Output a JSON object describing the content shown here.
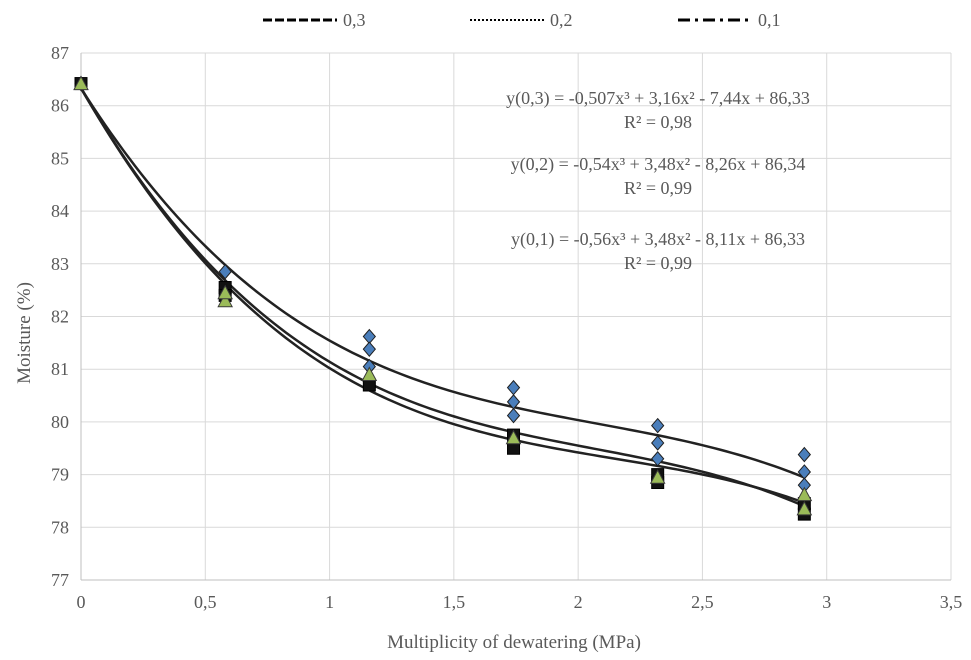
{
  "chart_data": {
    "type": "scatter",
    "xlabel": "Multiplicity of dewatering (MPa)",
    "ylabel": "Moisture (%)",
    "xlim": [
      0,
      3.5
    ],
    "ylim": [
      77,
      87
    ],
    "x_ticks": [
      "0",
      "0,5",
      "1",
      "1,5",
      "2",
      "2,5",
      "3",
      "3,5"
    ],
    "y_ticks": [
      "77",
      "78",
      "79",
      "80",
      "81",
      "82",
      "83",
      "84",
      "85",
      "86",
      "87"
    ],
    "grid": true,
    "legend_position": "top",
    "legend": [
      {
        "label": "0,3",
        "style": "dashed"
      },
      {
        "label": "0,2",
        "style": "dotted"
      },
      {
        "label": "0,1",
        "style": "dash-dot"
      }
    ],
    "series": [
      {
        "name": "0,3",
        "marker": "diamond",
        "color": "#4a7ebb",
        "points": [
          [
            0,
            86.42
          ],
          [
            0.58,
            82.85
          ],
          [
            1.16,
            81.62
          ],
          [
            1.16,
            81.38
          ],
          [
            1.16,
            81.05
          ],
          [
            1.74,
            80.65
          ],
          [
            1.74,
            80.38
          ],
          [
            1.74,
            80.12
          ],
          [
            2.32,
            79.93
          ],
          [
            2.32,
            79.6
          ],
          [
            2.32,
            79.3
          ],
          [
            2.91,
            79.38
          ],
          [
            2.91,
            79.05
          ],
          [
            2.91,
            78.8
          ]
        ]
      },
      {
        "name": "0,2",
        "marker": "square",
        "color": "#111111",
        "points": [
          [
            0,
            86.42
          ],
          [
            0.58,
            82.55
          ],
          [
            0.58,
            82.4
          ],
          [
            1.16,
            80.7
          ],
          [
            1.74,
            79.5
          ],
          [
            1.74,
            79.75
          ],
          [
            2.32,
            78.85
          ],
          [
            2.32,
            79.0
          ],
          [
            2.91,
            78.25
          ],
          [
            2.91,
            78.45
          ]
        ]
      },
      {
        "name": "0,1",
        "marker": "triangle",
        "color": "#9bbb59",
        "points": [
          [
            0,
            86.42
          ],
          [
            0.58,
            82.3
          ],
          [
            0.58,
            82.45
          ],
          [
            1.16,
            80.9
          ],
          [
            1.74,
            79.7
          ],
          [
            2.32,
            78.95
          ],
          [
            2.91,
            78.35
          ],
          [
            2.91,
            78.62
          ]
        ]
      }
    ],
    "trendlines": [
      {
        "series": "0,3",
        "coeffs": [
          -0.507,
          3.16,
          -7.44,
          86.33
        ],
        "equation": "y(0,3) = -0,507x³ + 3,16x² - 7,44x + 86,33",
        "r2": "R² = 0,98"
      },
      {
        "series": "0,2",
        "coeffs": [
          -0.54,
          3.48,
          -8.26,
          86.34
        ],
        "equation": "y(0,2) = -0,54x³ + 3,48x² - 8,26x + 86,34",
        "r2": "R² = 0,99"
      },
      {
        "series": "0,1",
        "coeffs": [
          -0.56,
          3.48,
          -8.11,
          86.33
        ],
        "equation": "y(0,1) = -0,56x³ + 3,48x² - 8,11x + 86,33",
        "r2": "R² = 0,99"
      }
    ],
    "trend_range": [
      0,
      2.91
    ],
    "gridline_color": "#d9d9d9",
    "curve_color": "#222222"
  }
}
